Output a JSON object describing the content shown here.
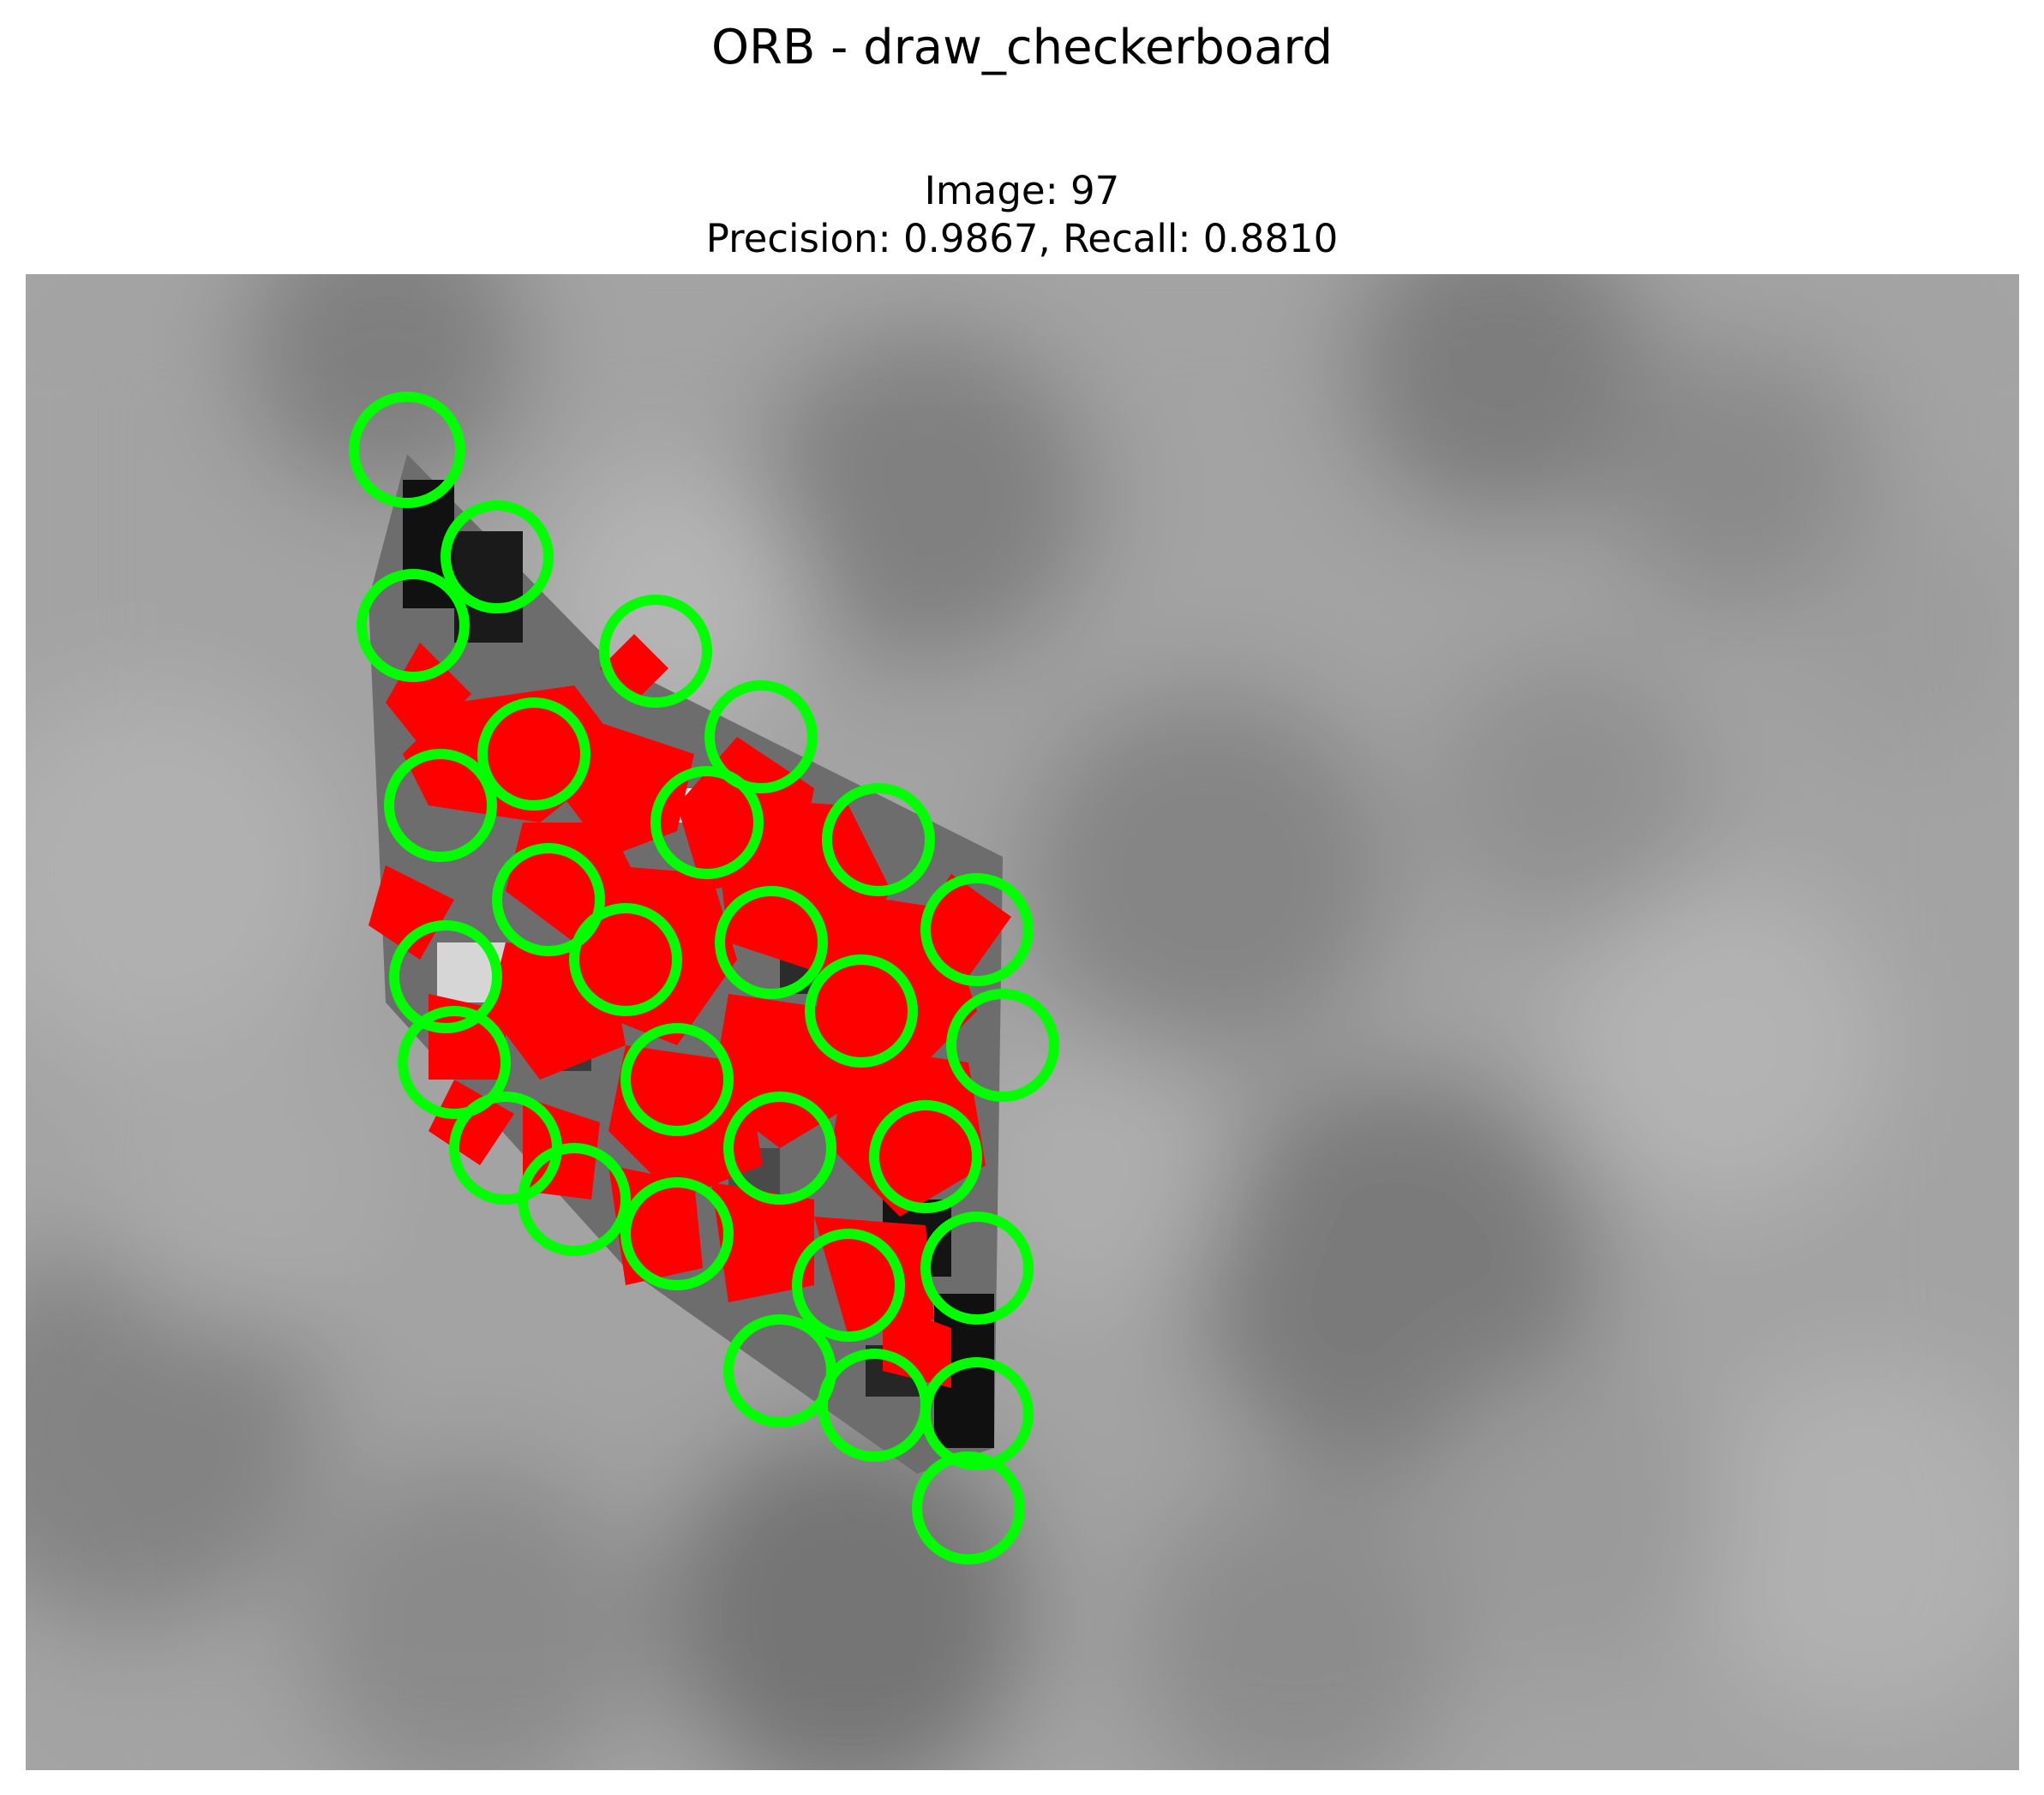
{
  "figure": {
    "title": "ORB - draw_checkerboard"
  },
  "panel": {
    "title_line1": "Image: 97",
    "title_line2": "Precision: 0.9867, Recall: 0.8810"
  },
  "image": {
    "description_tokens": [
      "grayscale-noise-background",
      "checkerboard-parallelogram",
      "keypoint-markers"
    ],
    "colors": {
      "true_positive": "#ff0000",
      "detected_outline": "#00ff00",
      "background_light": "#b0b0b0",
      "background_dark": "#7a7a7a"
    }
  }
}
